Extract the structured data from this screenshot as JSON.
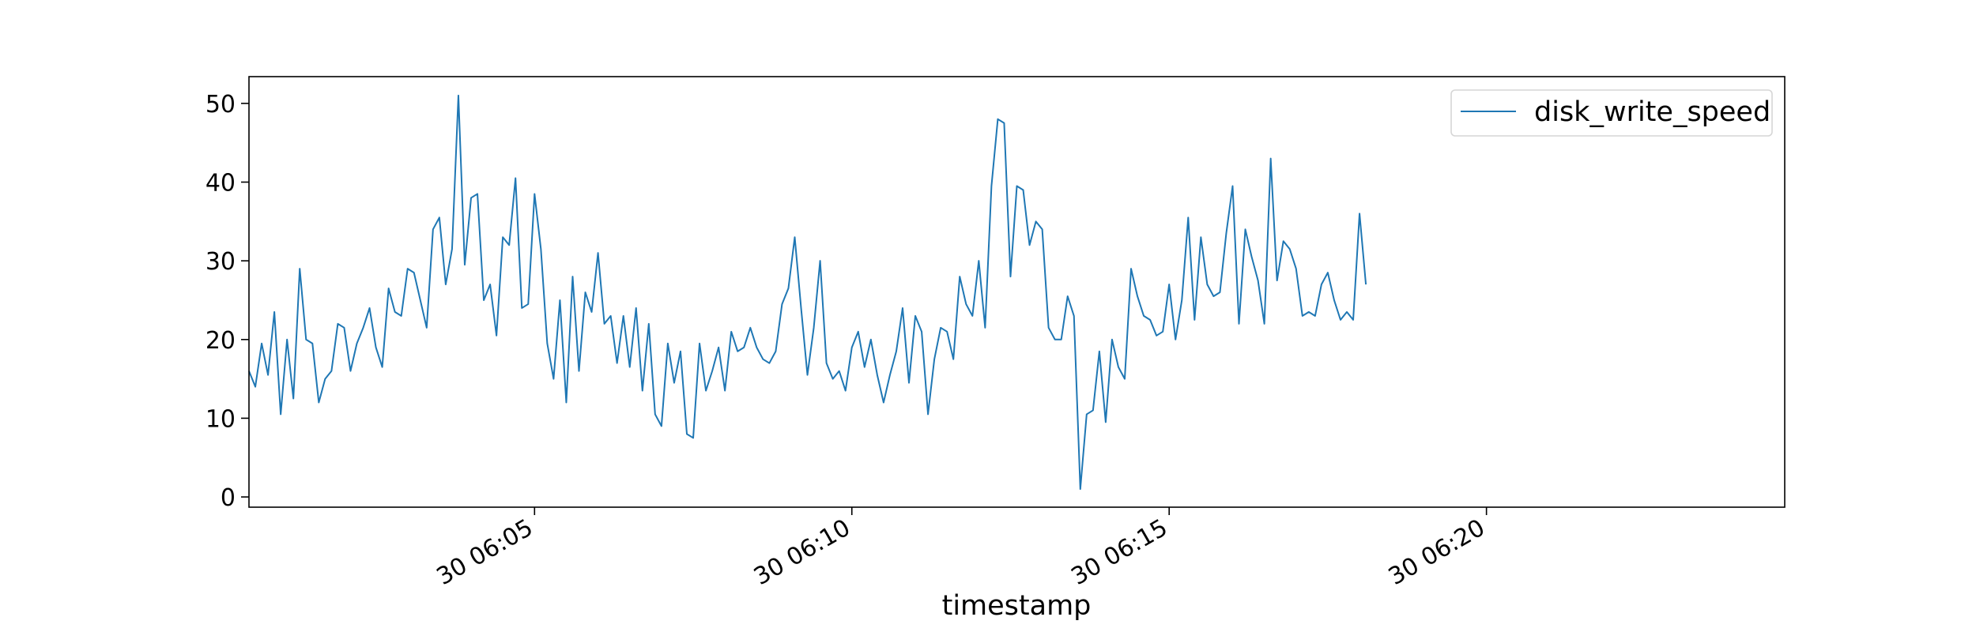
{
  "chart_data": {
    "type": "line",
    "title": "",
    "xlabel": "timestamp",
    "ylabel": "",
    "x_start": "30 06:00:30",
    "x_step_seconds": 6,
    "xlim": [
      "30 06:00:30",
      "30 06:24:42"
    ],
    "ylim": [
      -1.3,
      53.4
    ],
    "x_ticks": [
      {
        "value": "30 06:05",
        "label": "30 06:05"
      },
      {
        "value": "30 06:10",
        "label": "30 06:10"
      },
      {
        "value": "30 06:15",
        "label": "30 06:15"
      },
      {
        "value": "30 06:20",
        "label": "30 06:20"
      }
    ],
    "y_ticks": [
      0,
      10,
      20,
      30,
      40,
      50
    ],
    "grid": false,
    "legend": {
      "position": "top-right"
    },
    "series": [
      {
        "name": "disk_write_speed",
        "color": "#1f77b4",
        "values": [
          16,
          14,
          19.5,
          15.5,
          23.5,
          10.5,
          20,
          12.5,
          29,
          20,
          19.5,
          12,
          15,
          16,
          22,
          21.5,
          16,
          19.5,
          21.5,
          24,
          19,
          16.5,
          26.5,
          23.5,
          23,
          29,
          28.5,
          25,
          21.5,
          34,
          35.5,
          27,
          31.5,
          51,
          29.5,
          38,
          38.5,
          25,
          27,
          20.5,
          33,
          32,
          40.5,
          24,
          24.5,
          38.5,
          31.5,
          19.5,
          15,
          25,
          12,
          28,
          16,
          26,
          23.5,
          31,
          22,
          23,
          17,
          23,
          16.5,
          24,
          13.5,
          22,
          10.5,
          9,
          19.5,
          14.5,
          18.5,
          8,
          7.5,
          19.5,
          13.5,
          16,
          19,
          13.5,
          21,
          18.5,
          19,
          21.5,
          19,
          17.5,
          17,
          18.5,
          24.5,
          26.5,
          33,
          24,
          15.5,
          21.5,
          30,
          17,
          15,
          16,
          13.5,
          19,
          21,
          16.5,
          20,
          15.5,
          12,
          15.5,
          18.5,
          24,
          14.5,
          23,
          21,
          10.5,
          17.5,
          21.5,
          21,
          17.5,
          28,
          24.5,
          23,
          30,
          21.5,
          39.5,
          48,
          47.5,
          28,
          39.5,
          39,
          32,
          35,
          34,
          21.5,
          20,
          20,
          25.5,
          23,
          1,
          10.5,
          11,
          18.5,
          9.5,
          20,
          16.5,
          15,
          29,
          25.5,
          23,
          22.5,
          20.5,
          21,
          27,
          20,
          25,
          35.5,
          22.5,
          33,
          27,
          25.5,
          26,
          33.5,
          39.5,
          22,
          34,
          30.5,
          27.5,
          22,
          43,
          27.5,
          32.5,
          31.5,
          29,
          23,
          23.5,
          23,
          27,
          28.5,
          25,
          22.5,
          23.5,
          22.5,
          36,
          27
        ]
      }
    ]
  }
}
